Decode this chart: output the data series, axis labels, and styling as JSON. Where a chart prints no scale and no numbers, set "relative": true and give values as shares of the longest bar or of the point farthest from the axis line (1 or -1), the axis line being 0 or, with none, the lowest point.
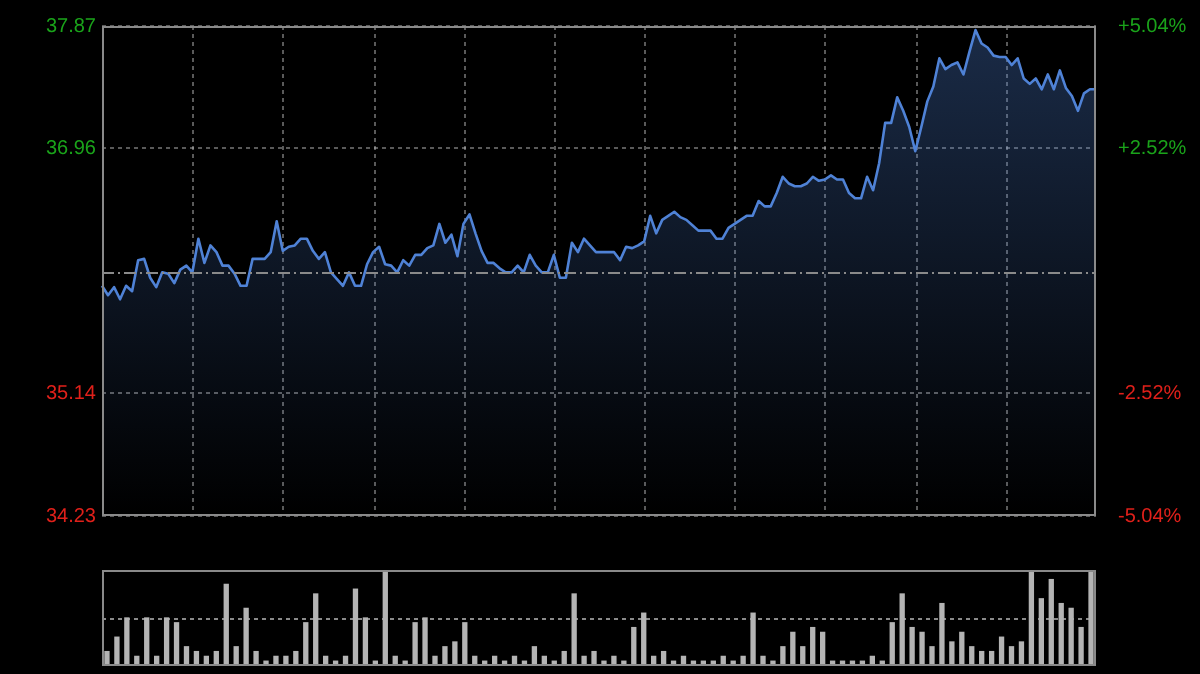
{
  "chart_data": [
    {
      "type": "area",
      "color": "#4f82d6",
      "grid": true,
      "categories": [
        null,
        null,
        null,
        null,
        null,
        null,
        null,
        null,
        null,
        null,
        null,
        null,
        null,
        null,
        null,
        null,
        null,
        null,
        null,
        null,
        null,
        null,
        null,
        null,
        null,
        null,
        null,
        null,
        null,
        null,
        null,
        null,
        null,
        null,
        null,
        null,
        null,
        null,
        null,
        null,
        null,
        null,
        null,
        null,
        null,
        null,
        null,
        null,
        null,
        null,
        null,
        null,
        null,
        null,
        null,
        null,
        null,
        null,
        null,
        null,
        null,
        null,
        null,
        null,
        null,
        null,
        null,
        null,
        null,
        null,
        null,
        null,
        null,
        null,
        null,
        null,
        null,
        null,
        null,
        null,
        null,
        null,
        null,
        null,
        null,
        null,
        null,
        null,
        null,
        null,
        null,
        null,
        null,
        null,
        null,
        null,
        null,
        null,
        null,
        null,
        null,
        null,
        null,
        null,
        null,
        null,
        null,
        null,
        null,
        null,
        null,
        null,
        null,
        null,
        null,
        null,
        null,
        null,
        null,
        null,
        null,
        null,
        null,
        null,
        null,
        null,
        null,
        null,
        null,
        null,
        null,
        null,
        null,
        null,
        null,
        null,
        null,
        null,
        null,
        null,
        null,
        null,
        null,
        null,
        null,
        null,
        null,
        null,
        null,
        null,
        null,
        null,
        null,
        null,
        null,
        null,
        null,
        null,
        null,
        null,
        null,
        null,
        null,
        null,
        null,
        null
      ],
      "values": [
        35.94,
        35.87,
        35.93,
        35.84,
        35.94,
        35.9,
        36.13,
        36.14,
        36.0,
        35.93,
        36.04,
        36.03,
        35.96,
        36.06,
        36.09,
        36.04,
        36.29,
        36.11,
        36.24,
        36.19,
        36.09,
        36.09,
        36.03,
        35.94,
        35.94,
        36.14,
        36.14,
        36.14,
        36.19,
        36.42,
        36.2,
        36.23,
        36.24,
        36.29,
        36.29,
        36.2,
        36.14,
        36.19,
        36.04,
        35.99,
        35.94,
        36.04,
        35.94,
        35.94,
        36.1,
        36.19,
        36.23,
        36.1,
        36.09,
        36.04,
        36.13,
        36.09,
        36.17,
        36.17,
        36.22,
        36.24,
        36.4,
        36.26,
        36.32,
        36.16,
        36.4,
        36.47,
        36.33,
        36.2,
        36.11,
        36.11,
        36.07,
        36.04,
        36.04,
        36.09,
        36.04,
        36.17,
        36.09,
        36.04,
        36.04,
        36.17,
        36.0,
        36.0,
        36.26,
        36.19,
        36.29,
        36.24,
        36.19,
        36.19,
        36.19,
        36.19,
        36.13,
        36.23,
        36.22,
        36.24,
        36.27,
        36.46,
        36.33,
        36.43,
        36.46,
        36.49,
        36.45,
        36.43,
        36.39,
        36.35,
        36.35,
        36.35,
        36.29,
        36.29,
        36.37,
        36.4,
        36.43,
        36.46,
        36.46,
        36.57,
        36.53,
        36.53,
        36.63,
        36.75,
        36.7,
        36.68,
        36.68,
        36.7,
        36.75,
        36.72,
        36.73,
        36.76,
        36.73,
        36.73,
        36.63,
        36.59,
        36.59,
        36.75,
        36.65,
        36.85,
        37.15,
        37.15,
        37.34,
        37.24,
        37.12,
        36.94,
        37.12,
        37.31,
        37.42,
        37.63,
        37.55,
        37.58,
        37.6,
        37.51,
        37.68,
        37.84,
        37.74,
        37.71,
        37.65,
        37.64,
        37.64,
        37.58,
        37.63,
        37.48,
        37.44,
        37.48,
        37.4,
        37.51,
        37.4,
        37.54,
        37.41,
        37.35,
        37.24,
        37.37,
        37.4,
        37.4
      ],
      "ylim": [
        34.23,
        37.87
      ],
      "yticks": [
        34.23,
        35.14,
        36.96,
        37.87
      ],
      "y2lim": [
        -5.04,
        5.04
      ],
      "y2ticks": [
        {
          "value": -5.04,
          "label": "-5.04%"
        },
        {
          "value": -2.52,
          "label": "-2.52%"
        },
        {
          "value": 2.52,
          "label": "+2.52%"
        },
        {
          "value": 5.04,
          "label": "+5.04%"
        }
      ],
      "ref_lines": [
        {
          "axis": "y",
          "value": 36.05,
          "color": "#8a8a8a",
          "line_style": "dashed"
        }
      ]
    },
    {
      "type": "bar",
      "relative": true,
      "color": "#b4b4b4",
      "ref_lines": [
        {
          "axis": "y",
          "value": 0.5,
          "color": "#8a8a8a",
          "line_style": "dotted"
        }
      ],
      "categories": [
        null,
        null,
        null,
        null,
        null,
        null,
        null,
        null,
        null,
        null,
        null,
        null,
        null,
        null,
        null,
        null,
        null,
        null,
        null,
        null,
        null,
        null,
        null,
        null,
        null,
        null,
        null,
        null,
        null,
        null,
        null,
        null,
        null,
        null,
        null,
        null,
        null,
        null,
        null,
        null,
        null,
        null,
        null,
        null,
        null,
        null,
        null,
        null,
        null,
        null,
        null,
        null,
        null,
        null,
        null,
        null,
        null,
        null,
        null,
        null,
        null,
        null,
        null,
        null,
        null,
        null,
        null,
        null,
        null,
        null,
        null,
        null,
        null,
        null,
        null,
        null,
        null,
        null,
        null,
        null,
        null,
        null,
        null,
        null,
        null,
        null,
        null,
        null,
        null,
        null,
        null,
        null,
        null,
        null,
        null,
        null,
        null,
        null,
        null,
        null
      ],
      "values": [
        0.15,
        0.3,
        0.5,
        0.1,
        0.5,
        0.1,
        0.5,
        0.45,
        0.2,
        0.15,
        0.1,
        0.15,
        0.85,
        0.2,
        0.6,
        0.15,
        0.05,
        0.1,
        0.1,
        0.15,
        0.45,
        0.75,
        0.1,
        0.05,
        0.1,
        0.8,
        0.5,
        0.05,
        1.0,
        0.1,
        0.05,
        0.45,
        0.5,
        0.1,
        0.2,
        0.25,
        0.45,
        0.1,
        0.05,
        0.1,
        0.05,
        0.1,
        0.05,
        0.2,
        0.1,
        0.05,
        0.15,
        0.75,
        0.1,
        0.15,
        0.05,
        0.1,
        0.05,
        0.4,
        0.55,
        0.1,
        0.15,
        0.05,
        0.1,
        0.05,
        0.05,
        0.05,
        0.1,
        0.05,
        0.1,
        0.55,
        0.1,
        0.05,
        0.2,
        0.35,
        0.2,
        0.4,
        0.35,
        0.05,
        0.05,
        0.05,
        0.05,
        0.1,
        0.05,
        0.45,
        0.75,
        0.4,
        0.35,
        0.2,
        0.65,
        0.25,
        0.35,
        0.2,
        0.15,
        0.15,
        0.3,
        0.2,
        0.25,
        1.0,
        0.7,
        0.9,
        0.65,
        0.6,
        0.4,
        1.0
      ]
    }
  ]
}
